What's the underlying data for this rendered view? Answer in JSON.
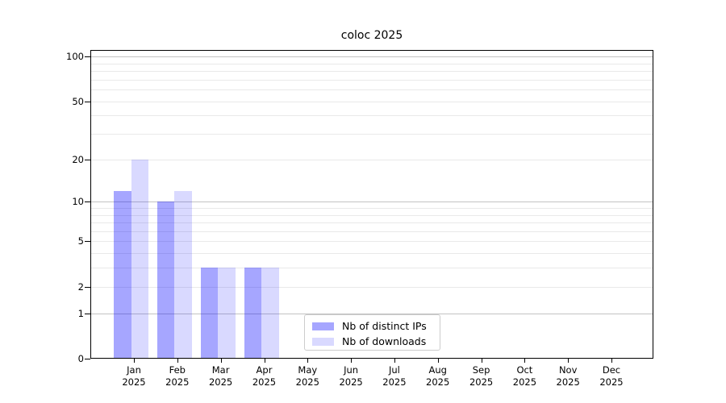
{
  "chart_data": {
    "type": "bar",
    "title": "coloc 2025",
    "yscale": "log1p",
    "ylim": [
      0,
      110
    ],
    "yticks": [
      0,
      1,
      2,
      5,
      10,
      20,
      50,
      100
    ],
    "grid": {
      "major_values": [
        1,
        10,
        100
      ],
      "minor_values": [
        2,
        3,
        4,
        5,
        6,
        7,
        8,
        9,
        20,
        30,
        40,
        50,
        60,
        70,
        80,
        90
      ],
      "major_color": "#c3c3c3",
      "minor_color": "#e9e9e9"
    },
    "categories": [
      {
        "month": "Jan",
        "year": "2025"
      },
      {
        "month": "Feb",
        "year": "2025"
      },
      {
        "month": "Mar",
        "year": "2025"
      },
      {
        "month": "Apr",
        "year": "2025"
      },
      {
        "month": "May",
        "year": "2025"
      },
      {
        "month": "Jun",
        "year": "2025"
      },
      {
        "month": "Jul",
        "year": "2025"
      },
      {
        "month": "Aug",
        "year": "2025"
      },
      {
        "month": "Sep",
        "year": "2025"
      },
      {
        "month": "Oct",
        "year": "2025"
      },
      {
        "month": "Nov",
        "year": "2025"
      },
      {
        "month": "Dec",
        "year": "2025"
      }
    ],
    "series": [
      {
        "name": "Nb of distinct IPs",
        "color": "rgba(0,0,255,0.35)",
        "values": [
          12,
          10,
          3,
          3,
          0,
          0,
          0,
          0,
          0,
          0,
          0,
          0
        ]
      },
      {
        "name": "Nb of downloads",
        "color": "rgba(0,0,255,0.15)",
        "values": [
          20,
          12,
          3,
          3,
          0,
          0,
          0,
          0,
          0,
          0,
          0,
          0
        ]
      }
    ],
    "legend": {
      "position": "lower center-left inside plot"
    }
  }
}
